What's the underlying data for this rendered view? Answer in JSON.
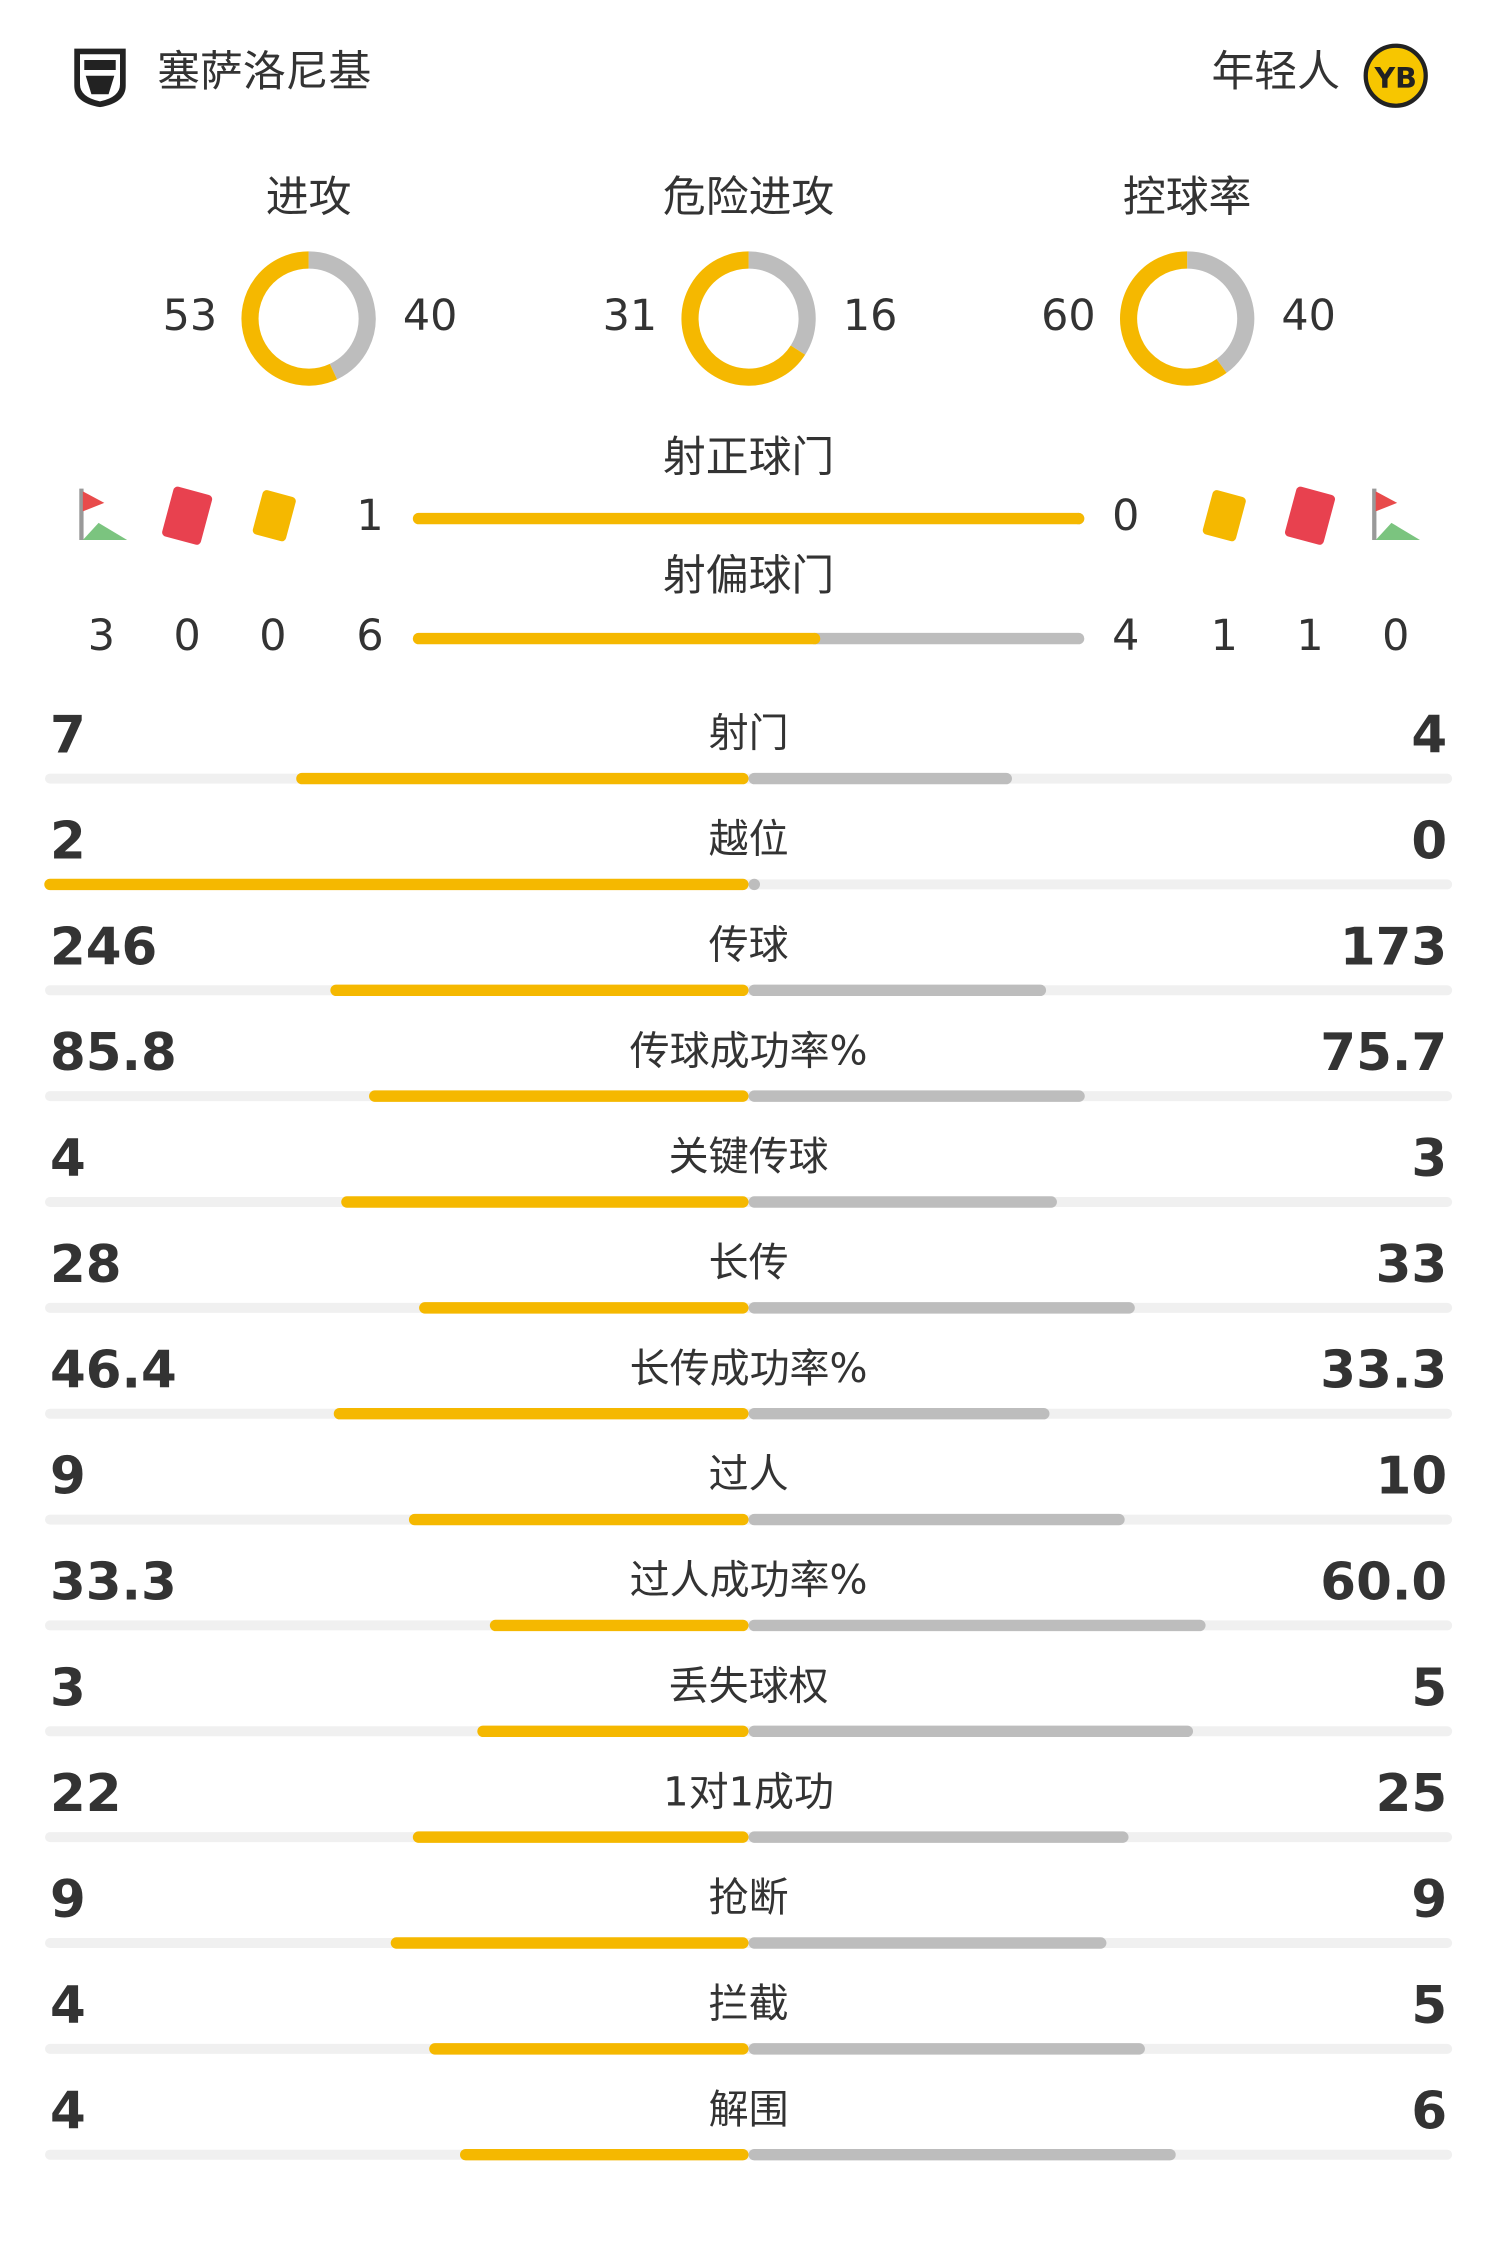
{
  "teams": {
    "home": "塞萨洛尼基",
    "away": "年轻人"
  },
  "donuts": [
    {
      "label": "进攻",
      "home": 53,
      "away": 40
    },
    {
      "label": "危险进攻",
      "home": 31,
      "away": 16
    },
    {
      "label": "控球率",
      "home": 60,
      "away": 40
    }
  ],
  "events": {
    "home": {
      "corners": 3,
      "red_cards": 0,
      "yellow_cards": 0
    },
    "away": {
      "yellow_cards": 1,
      "red_cards": 1,
      "corners": 0
    }
  },
  "shots_on_target": {
    "label": "射正球门",
    "home": 1,
    "away": 0
  },
  "shots_off_target": {
    "label": "射偏球门",
    "home": 6,
    "away": 4
  },
  "stats": [
    {
      "name": "射门",
      "home": 7,
      "away": 4
    },
    {
      "name": "越位",
      "home": 2,
      "away": 0
    },
    {
      "name": "传球",
      "home": 246,
      "away": 173
    },
    {
      "name": "传球成功率%",
      "home": 85.8,
      "away": 75.7
    },
    {
      "name": "关键传球",
      "home": 4,
      "away": 3
    },
    {
      "name": "长传",
      "home": 28,
      "away": 33
    },
    {
      "name": "长传成功率%",
      "home": 46.4,
      "away": 33.3
    },
    {
      "name": "过人",
      "home": 9,
      "away": 10
    },
    {
      "name": "过人成功率%",
      "home": 33.3,
      "away": {
        "value": 60,
        "label": "60.0"
      }
    },
    {
      "name": "丢失球权",
      "home": 3,
      "away": 5
    },
    {
      "name": "1对1成功",
      "home": 22,
      "away": 25
    },
    {
      "name": "抢断",
      "home": 9,
      "away": 9
    },
    {
      "name": "拦截",
      "home": 4,
      "away": 5
    },
    {
      "name": "解围",
      "home": 4,
      "away": 6
    }
  ]
}
